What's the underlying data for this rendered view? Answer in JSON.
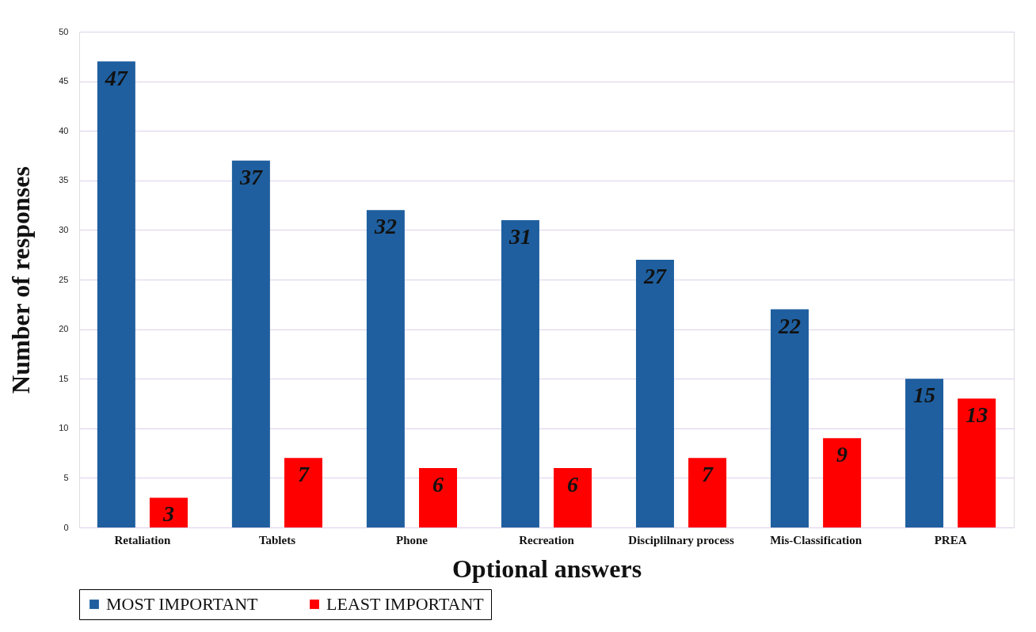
{
  "chart_data": {
    "type": "bar",
    "xlabel": "Optional answers",
    "ylabel": "Number of responses",
    "categories": [
      "Retaliation",
      "Tablets",
      "Phone",
      "Recreation",
      "Disciplilnary process",
      "Mis-Classification",
      "PREA"
    ],
    "series": [
      {
        "name": "MOST IMPORTANT",
        "color": "#1f5f9f",
        "values": [
          47,
          37,
          32,
          31,
          27,
          22,
          15
        ]
      },
      {
        "name": "LEAST IMPORTANT",
        "color": "#ff0000",
        "values": [
          3,
          7,
          6,
          6,
          7,
          9,
          13
        ]
      }
    ],
    "ylim": [
      0,
      50
    ],
    "yticks": [
      0,
      5,
      10,
      15,
      20,
      25,
      30,
      35,
      40,
      45,
      50
    ],
    "grid": "y",
    "legend": "bottom",
    "data_labels": true
  }
}
